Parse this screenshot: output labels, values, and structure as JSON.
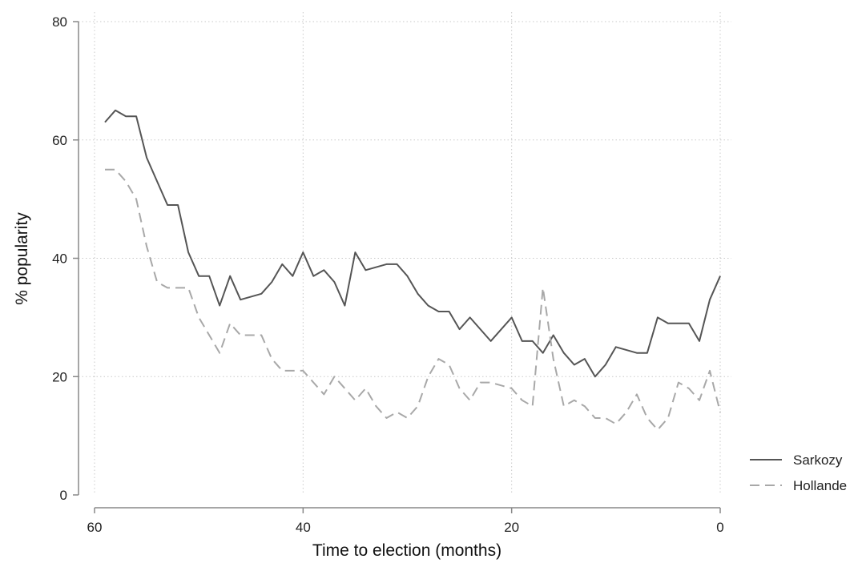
{
  "chart_data": {
    "type": "line",
    "title": "",
    "xlabel": "Time to election (months)",
    "ylabel": "% popularity",
    "xlim": [
      60,
      0
    ],
    "ylim": [
      0,
      80
    ],
    "x_ticks": [
      60,
      40,
      20,
      0
    ],
    "y_ticks": [
      0,
      20,
      40,
      60,
      80
    ],
    "grid": true,
    "legend_position": "right",
    "series": [
      {
        "name": "Sarkozy",
        "color": "#555555",
        "style": "solid",
        "points": [
          [
            59,
            63
          ],
          [
            58,
            65
          ],
          [
            57,
            64
          ],
          [
            56,
            64
          ],
          [
            55,
            57
          ],
          [
            54,
            53
          ],
          [
            53,
            49
          ],
          [
            52,
            49
          ],
          [
            51,
            41
          ],
          [
            50,
            37
          ],
          [
            49,
            37
          ],
          [
            48,
            32
          ],
          [
            47,
            37
          ],
          [
            46,
            33
          ],
          [
            44,
            34
          ],
          [
            43,
            36
          ],
          [
            42,
            39
          ],
          [
            41,
            37
          ],
          [
            40,
            41
          ],
          [
            39,
            37
          ],
          [
            38,
            38
          ],
          [
            37,
            36
          ],
          [
            36,
            32
          ],
          [
            35,
            41
          ],
          [
            34,
            38
          ],
          [
            32,
            39
          ],
          [
            31,
            39
          ],
          [
            30,
            37
          ],
          [
            29,
            34
          ],
          [
            28,
            32
          ],
          [
            27,
            31
          ],
          [
            26,
            31
          ],
          [
            25,
            28
          ],
          [
            24,
            30
          ],
          [
            22,
            26
          ],
          [
            20,
            30
          ],
          [
            19,
            26
          ],
          [
            18,
            26
          ],
          [
            17,
            24
          ],
          [
            16,
            27
          ],
          [
            15,
            24
          ],
          [
            14,
            22
          ],
          [
            13,
            23
          ],
          [
            12,
            20
          ],
          [
            11,
            22
          ],
          [
            10,
            25
          ],
          [
            8,
            24
          ],
          [
            7,
            24
          ],
          [
            6,
            30
          ],
          [
            5,
            29
          ],
          [
            3,
            29
          ],
          [
            2,
            26
          ],
          [
            1,
            33
          ],
          [
            0,
            37
          ]
        ]
      },
      {
        "name": "Hollande",
        "color": "#a8a8a8",
        "style": "dashed",
        "points": [
          [
            59,
            55
          ],
          [
            58,
            55
          ],
          [
            57,
            53
          ],
          [
            56,
            50
          ],
          [
            55,
            42
          ],
          [
            54,
            36
          ],
          [
            53,
            35
          ],
          [
            52,
            35
          ],
          [
            51,
            35
          ],
          [
            50,
            30
          ],
          [
            49,
            27
          ],
          [
            48,
            24
          ],
          [
            47,
            29
          ],
          [
            46,
            27
          ],
          [
            44,
            27
          ],
          [
            43,
            23
          ],
          [
            42,
            21
          ],
          [
            41,
            21
          ],
          [
            40,
            21
          ],
          [
            39,
            19
          ],
          [
            38,
            17
          ],
          [
            37,
            20
          ],
          [
            36,
            18
          ],
          [
            35,
            16
          ],
          [
            34,
            18
          ],
          [
            33,
            15
          ],
          [
            32,
            13
          ],
          [
            31,
            14
          ],
          [
            30,
            13
          ],
          [
            29,
            15
          ],
          [
            28,
            20
          ],
          [
            27,
            23
          ],
          [
            26,
            22
          ],
          [
            25,
            18
          ],
          [
            24,
            16
          ],
          [
            23,
            19
          ],
          [
            22,
            19
          ],
          [
            20,
            18
          ],
          [
            19,
            16
          ],
          [
            18,
            15
          ],
          [
            17,
            35
          ],
          [
            16,
            23
          ],
          [
            15,
            15
          ],
          [
            14,
            16
          ],
          [
            13,
            15
          ],
          [
            12,
            13
          ],
          [
            11,
            13
          ],
          [
            10,
            12
          ],
          [
            9,
            14
          ],
          [
            8,
            17
          ],
          [
            7,
            13
          ],
          [
            6,
            11
          ],
          [
            5,
            13
          ],
          [
            4,
            19
          ],
          [
            3,
            18
          ],
          [
            2,
            16
          ],
          [
            1,
            21
          ],
          [
            0,
            14
          ]
        ]
      }
    ]
  }
}
